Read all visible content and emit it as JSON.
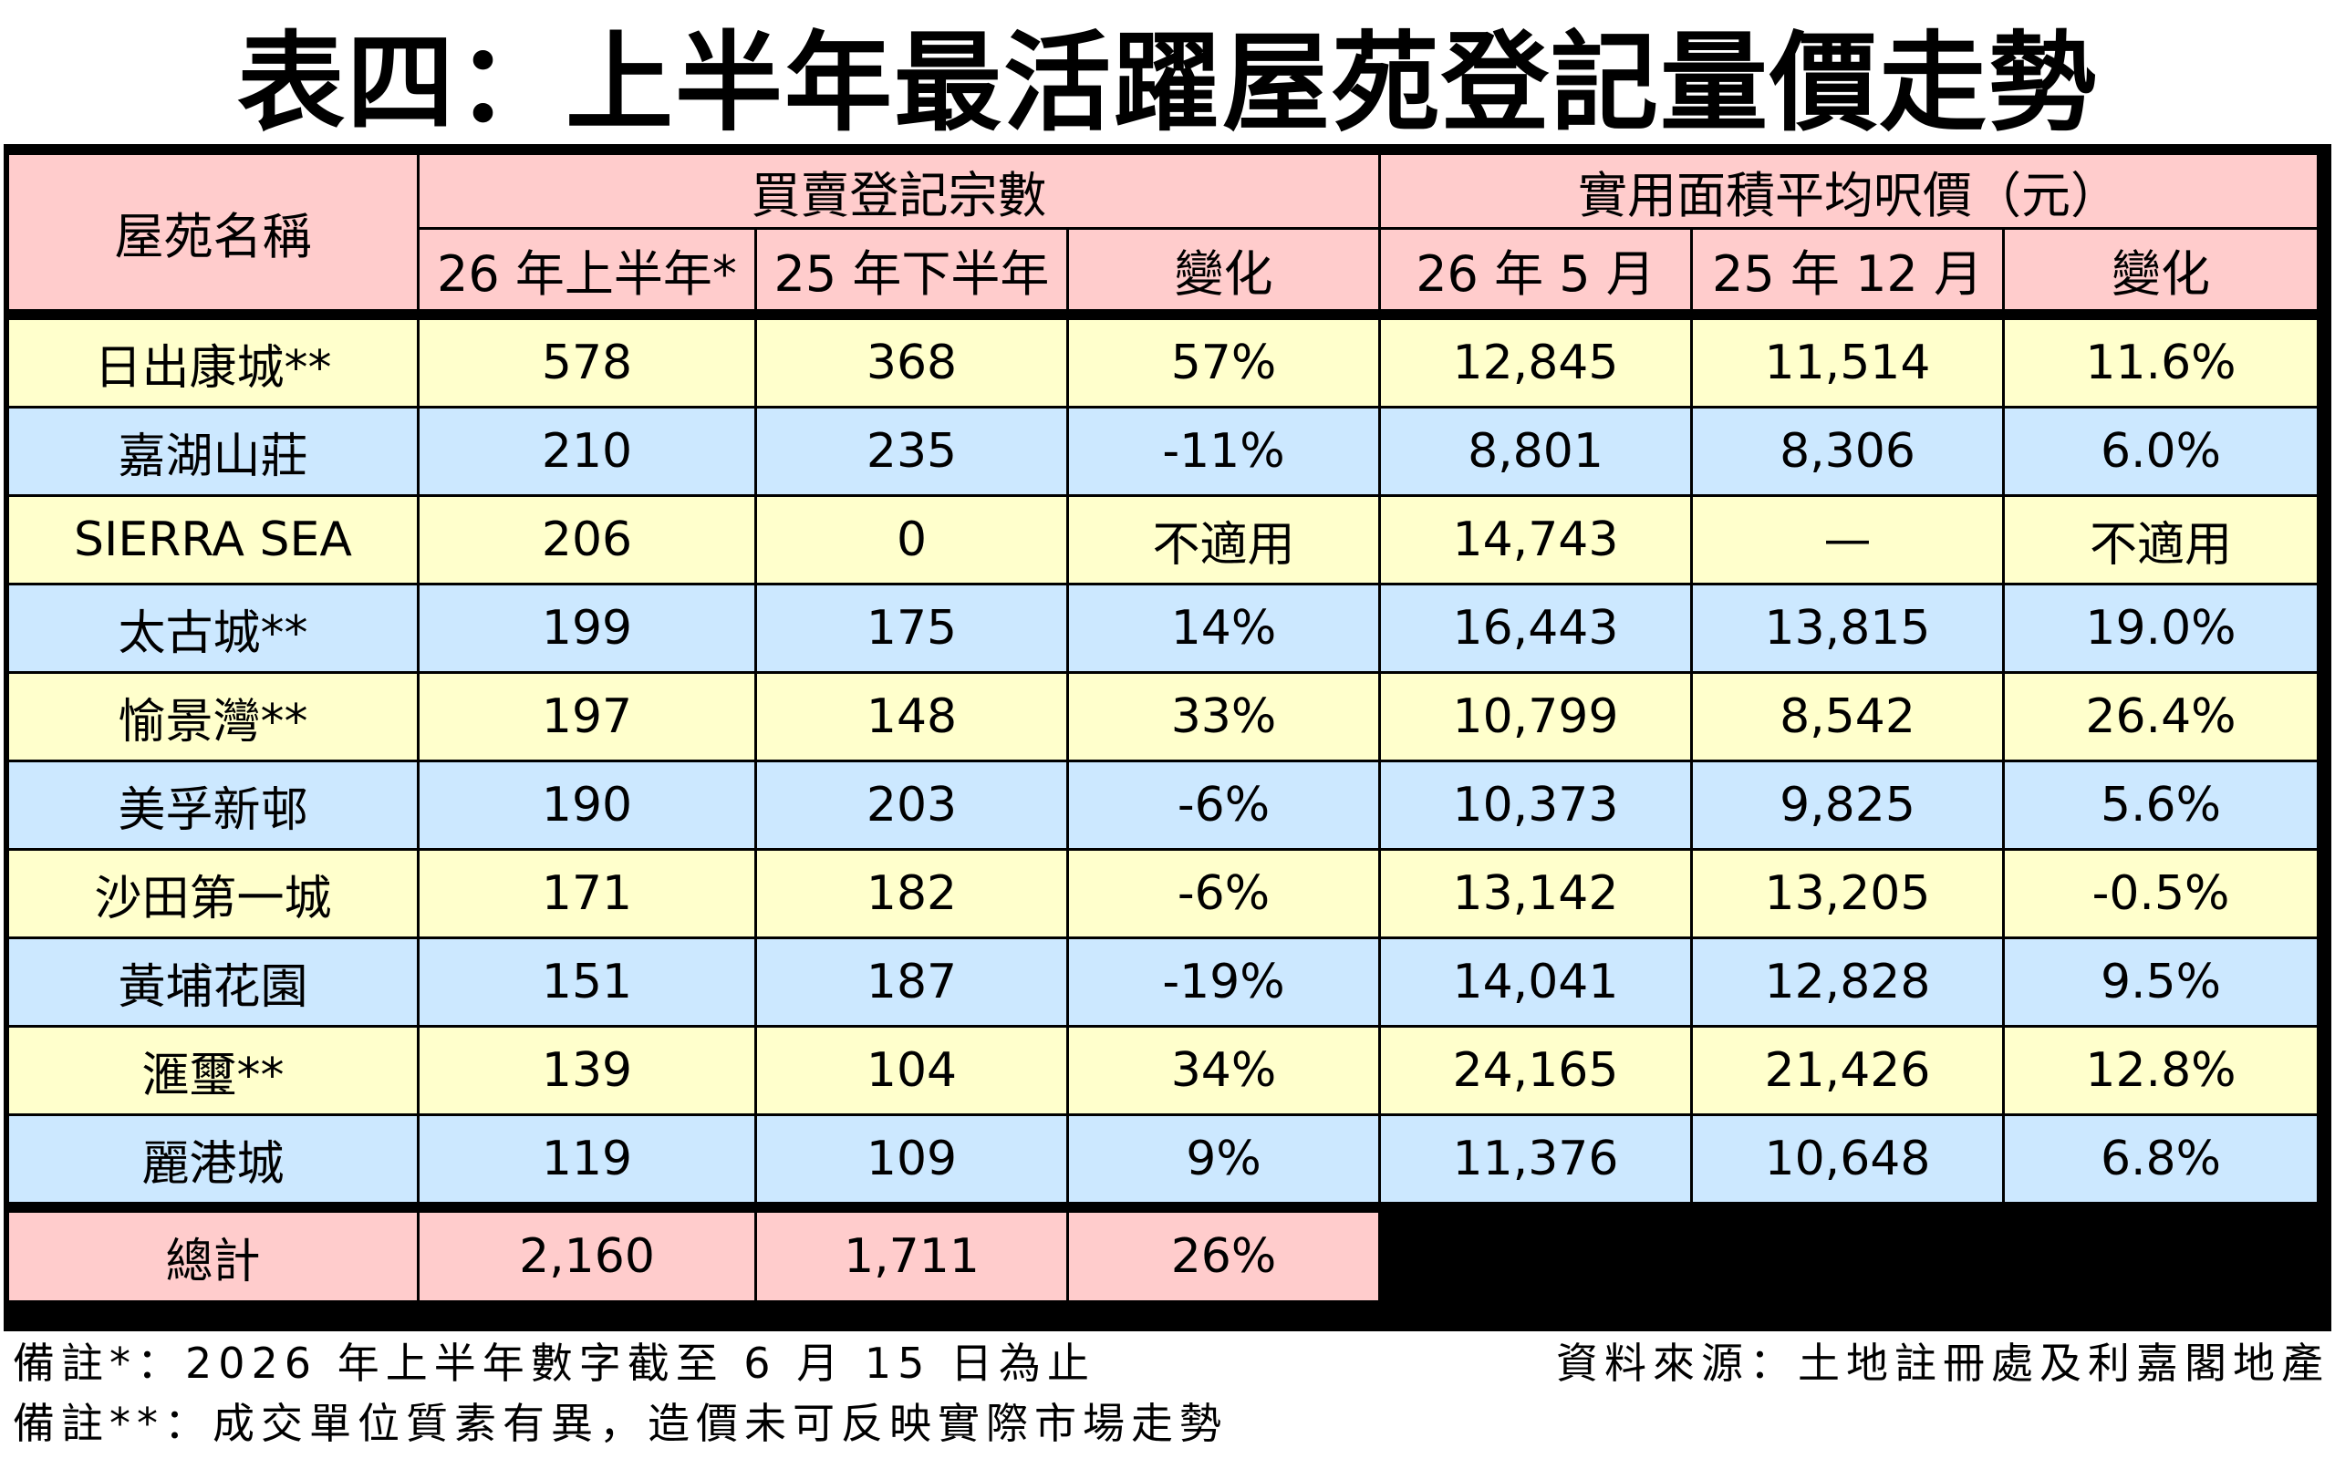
{
  "title": "表四：上半年最活躍屋苑登記量價走勢",
  "header": {
    "estate": "屋苑名稱",
    "group_registrations": "買賣登記宗數",
    "group_price": "實用面積平均呎價（元）",
    "reg_h1_26": "26 年上半年*",
    "reg_h2_25": "25 年下半年",
    "reg_change": "變化",
    "price_may_26": "26 年 5 月",
    "price_dec_25": "25 年 12 月",
    "price_change": "變化"
  },
  "rows": [
    {
      "name": "日出康城**",
      "reg_h1_26": "578",
      "reg_h2_25": "368",
      "reg_change": "57%",
      "price_may_26": "12,845",
      "price_dec_25": "11,514",
      "price_change": "11.6%"
    },
    {
      "name": "嘉湖山莊",
      "reg_h1_26": "210",
      "reg_h2_25": "235",
      "reg_change": "-11%",
      "price_may_26": "8,801",
      "price_dec_25": "8,306",
      "price_change": "6.0%"
    },
    {
      "name": "SIERRA SEA",
      "reg_h1_26": "206",
      "reg_h2_25": "0",
      "reg_change": "不適用",
      "price_may_26": "14,743",
      "price_dec_25": "—",
      "price_change": "不適用"
    },
    {
      "name": "太古城**",
      "reg_h1_26": "199",
      "reg_h2_25": "175",
      "reg_change": "14%",
      "price_may_26": "16,443",
      "price_dec_25": "13,815",
      "price_change": "19.0%"
    },
    {
      "name": "愉景灣**",
      "reg_h1_26": "197",
      "reg_h2_25": "148",
      "reg_change": "33%",
      "price_may_26": "10,799",
      "price_dec_25": "8,542",
      "price_change": "26.4%"
    },
    {
      "name": "美孚新邨",
      "reg_h1_26": "190",
      "reg_h2_25": "203",
      "reg_change": "-6%",
      "price_may_26": "10,373",
      "price_dec_25": "9,825",
      "price_change": "5.6%"
    },
    {
      "name": "沙田第一城",
      "reg_h1_26": "171",
      "reg_h2_25": "182",
      "reg_change": "-6%",
      "price_may_26": "13,142",
      "price_dec_25": "13,205",
      "price_change": "-0.5%"
    },
    {
      "name": "黃埔花園",
      "reg_h1_26": "151",
      "reg_h2_25": "187",
      "reg_change": "-19%",
      "price_may_26": "14,041",
      "price_dec_25": "12,828",
      "price_change": "9.5%"
    },
    {
      "name": "滙璽**",
      "reg_h1_26": "139",
      "reg_h2_25": "104",
      "reg_change": "34%",
      "price_may_26": "24,165",
      "price_dec_25": "21,426",
      "price_change": "12.8%"
    },
    {
      "name": "麗港城",
      "reg_h1_26": "119",
      "reg_h2_25": "109",
      "reg_change": "9%",
      "price_may_26": "11,376",
      "price_dec_25": "10,648",
      "price_change": "6.8%"
    }
  ],
  "total": {
    "label": "總計",
    "reg_h1_26": "2,160",
    "reg_h2_25": "1,711",
    "reg_change": "26%"
  },
  "notes": {
    "note1": "備註*：2026 年上半年數字截至 6 月 15 日為止",
    "source": "資料來源：土地註冊處及利嘉閣地產",
    "note2": "備註**：成交單位質素有異，造價未可反映實際市場走勢"
  }
}
